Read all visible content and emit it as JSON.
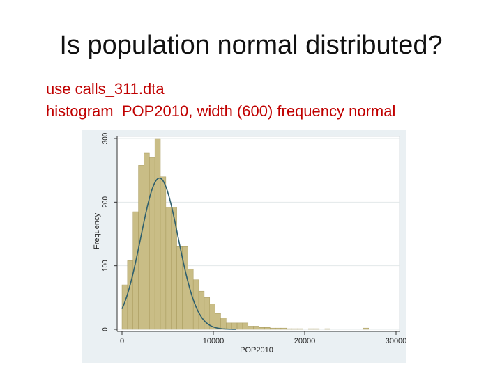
{
  "slide": {
    "title": "Is population normal distributed?",
    "code_lines": [
      "use calls_311.dta",
      "histogram  POP2010, width (600) frequency normal"
    ]
  },
  "colors": {
    "bar_fill": "#c9bd86",
    "bar_stroke": "#a89a5c",
    "normal_curve": "#2e5f6e",
    "plot_bg": "#ffffff",
    "outer_bg": "#eaf0f3"
  },
  "chart_data": {
    "type": "bar",
    "xlabel": "POP2010",
    "ylabel": "Frequency",
    "bin_width": 600,
    "xlim": [
      0,
      30000
    ],
    "ylim": [
      0,
      300
    ],
    "x_ticks": [
      0,
      10000,
      20000,
      30000
    ],
    "y_ticks": [
      0,
      100,
      200,
      300
    ],
    "grid": true,
    "bins": [
      {
        "start": 0,
        "count": 70
      },
      {
        "start": 600,
        "count": 108
      },
      {
        "start": 1200,
        "count": 185
      },
      {
        "start": 1800,
        "count": 258
      },
      {
        "start": 2400,
        "count": 277
      },
      {
        "start": 3000,
        "count": 270
      },
      {
        "start": 3600,
        "count": 300
      },
      {
        "start": 4200,
        "count": 240
      },
      {
        "start": 4800,
        "count": 192
      },
      {
        "start": 5400,
        "count": 192
      },
      {
        "start": 6000,
        "count": 130
      },
      {
        "start": 6600,
        "count": 130
      },
      {
        "start": 7200,
        "count": 95
      },
      {
        "start": 7800,
        "count": 78
      },
      {
        "start": 8400,
        "count": 60
      },
      {
        "start": 9000,
        "count": 50
      },
      {
        "start": 9600,
        "count": 40
      },
      {
        "start": 10200,
        "count": 25
      },
      {
        "start": 10800,
        "count": 18
      },
      {
        "start": 11400,
        "count": 10
      },
      {
        "start": 12000,
        "count": 10
      },
      {
        "start": 12600,
        "count": 10
      },
      {
        "start": 13200,
        "count": 10
      },
      {
        "start": 13800,
        "count": 5
      },
      {
        "start": 14400,
        "count": 5
      },
      {
        "start": 15000,
        "count": 3
      },
      {
        "start": 15600,
        "count": 3
      },
      {
        "start": 16200,
        "count": 2
      },
      {
        "start": 16800,
        "count": 2
      },
      {
        "start": 17400,
        "count": 2
      },
      {
        "start": 18000,
        "count": 1
      },
      {
        "start": 18600,
        "count": 1
      },
      {
        "start": 19200,
        "count": 1
      },
      {
        "start": 20400,
        "count": 1
      },
      {
        "start": 21000,
        "count": 1
      },
      {
        "start": 22200,
        "count": 1
      },
      {
        "start": 26400,
        "count": 2
      }
    ],
    "normal_curve": {
      "mean": 4100,
      "sd": 2050,
      "peak": 238
    }
  }
}
